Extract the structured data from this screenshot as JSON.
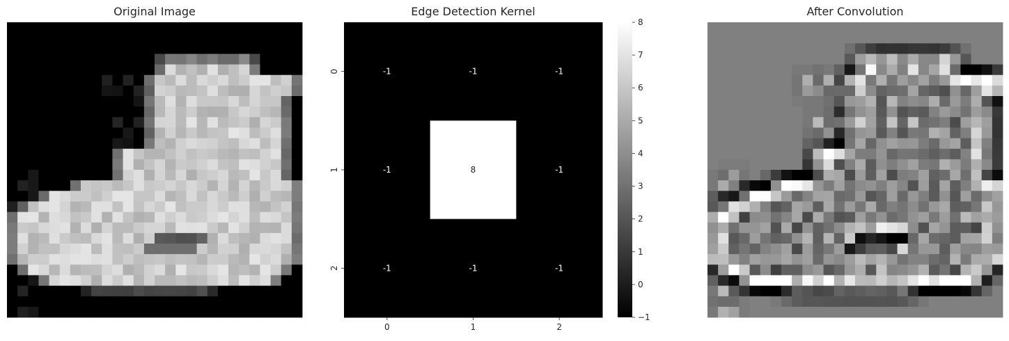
{
  "chart_data": [
    {
      "type": "heatmap",
      "title": "Original Image",
      "cmap": "gray",
      "axes": "off",
      "description_of_values": "28x28 grayscale image of an ankle boot",
      "grid": "none"
    },
    {
      "type": "heatmap",
      "title": "Edge Detection Kernel",
      "cmap": "gray",
      "annotated": true,
      "x_ticks": [
        "0",
        "1",
        "2"
      ],
      "y_ticks": [
        "0",
        "1",
        "2"
      ],
      "values": [
        [
          -1,
          -1,
          -1
        ],
        [
          -1,
          8,
          -1
        ],
        [
          -1,
          -1,
          -1
        ]
      ],
      "colorbar": {
        "range": [
          -1,
          8
        ],
        "ticks": [
          "−1",
          "0",
          "1",
          "2",
          "3",
          "4",
          "5",
          "6",
          "7",
          "8"
        ]
      }
    },
    {
      "type": "heatmap",
      "title": "After Convolution",
      "cmap": "gray",
      "axes": "off",
      "grid": "none"
    }
  ]
}
